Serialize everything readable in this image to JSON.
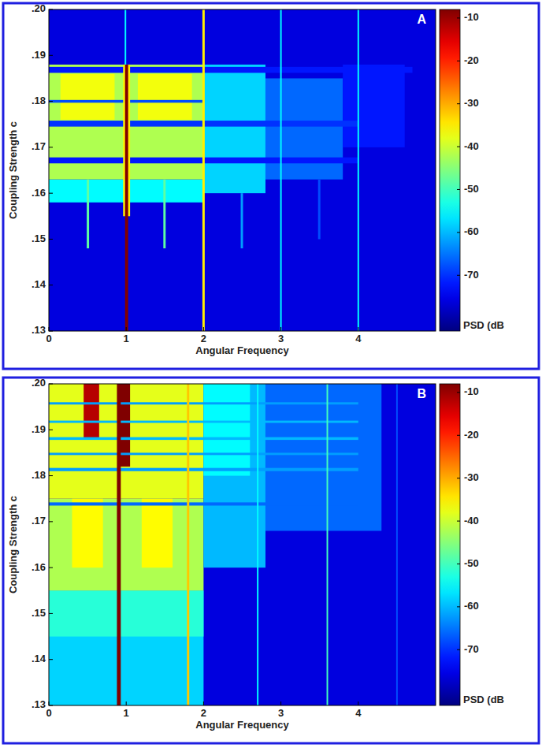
{
  "chart_data": [
    {
      "type": "heatmap",
      "panel": "A",
      "xlabel": "Angular Frequency",
      "ylabel": "Coupling Strength c",
      "xlim": [
        0,
        5
      ],
      "ylim": [
        0.13,
        0.2
      ],
      "xticks": [
        0,
        1,
        2,
        3,
        4
      ],
      "yticks": [
        {
          "value": 0.13,
          "label": ".13"
        },
        {
          "value": 0.14,
          "label": ".14"
        },
        {
          "value": 0.15,
          "label": ".15"
        },
        {
          "value": 0.16,
          "label": ".16"
        },
        {
          "value": 0.17,
          "label": ".17"
        },
        {
          "value": 0.18,
          "label": ".18"
        },
        {
          "value": 0.19,
          "label": ".19"
        },
        {
          "value": 0.2,
          "label": ".20"
        }
      ],
      "colorbar": {
        "label": "PSD (dB",
        "range": [
          -83,
          -8
        ],
        "ticks": [
          -10,
          -20,
          -30,
          -40,
          -50,
          -60,
          -70
        ]
      },
      "cells": [
        {
          "x": [
            0,
            5
          ],
          "y": [
            0.13,
            0.2
          ],
          "value": -76
        },
        {
          "x": [
            0,
            2
          ],
          "y": [
            0.158,
            0.163
          ],
          "value": -55
        },
        {
          "x": [
            0,
            2
          ],
          "y": [
            0.163,
            0.188
          ],
          "value": -42
        },
        {
          "x": [
            0.15,
            0.85
          ],
          "y": [
            0.176,
            0.186
          ],
          "value": -37
        },
        {
          "x": [
            1.15,
            1.85
          ],
          "y": [
            0.176,
            0.186
          ],
          "value": -37
        },
        {
          "x": [
            2,
            2.8
          ],
          "y": [
            0.16,
            0.188
          ],
          "value": -58
        },
        {
          "x": [
            2.8,
            3.8
          ],
          "y": [
            0.163,
            0.185
          ],
          "value": -66
        },
        {
          "x": [
            3.8,
            4.6
          ],
          "y": [
            0.17,
            0.188
          ],
          "value": -72
        },
        {
          "x": [
            0,
            4
          ],
          "y": [
            0.1665,
            0.1678
          ],
          "value": -72
        },
        {
          "x": [
            0,
            4
          ],
          "y": [
            0.1745,
            0.1758
          ],
          "value": -70
        },
        {
          "x": [
            0,
            2
          ],
          "y": [
            0.1797,
            0.1803
          ],
          "value": -68
        },
        {
          "x": [
            0,
            4.7
          ],
          "y": [
            0.1862,
            0.1875
          ],
          "value": -72
        },
        {
          "x": [
            0.49,
            0.52
          ],
          "y": [
            0.148,
            0.163
          ],
          "value": -48
        },
        {
          "x": [
            1.48,
            1.51
          ],
          "y": [
            0.148,
            0.163
          ],
          "value": -48
        },
        {
          "x": [
            2.48,
            2.51
          ],
          "y": [
            0.148,
            0.16
          ],
          "value": -62
        },
        {
          "x": [
            3.48,
            3.51
          ],
          "y": [
            0.15,
            0.163
          ],
          "value": -68
        },
        {
          "x": [
            0.96,
            1.05
          ],
          "y": [
            0.155,
            0.188
          ],
          "value": -35
        },
        {
          "x": [
            0.985,
            1.025
          ],
          "y": [
            0.13,
            0.188
          ],
          "value": -8
        },
        {
          "x": [
            0.98,
            1.0
          ],
          "y": [
            0.188,
            0.2
          ],
          "value": -55
        },
        {
          "x": [
            1.985,
            2.015
          ],
          "y": [
            0.13,
            0.2
          ],
          "value": -35
        },
        {
          "x": [
            2.99,
            3.01
          ],
          "y": [
            0.13,
            0.2
          ],
          "value": -55
        },
        {
          "x": [
            3.99,
            4.01
          ],
          "y": [
            0.13,
            0.2
          ],
          "value": -55
        }
      ]
    },
    {
      "type": "heatmap",
      "panel": "B",
      "xlabel": "Angular Frequency",
      "ylabel": "Coupling Strength c",
      "xlim": [
        0,
        5
      ],
      "ylim": [
        0.13,
        0.2
      ],
      "xticks": [
        0,
        1,
        2,
        3,
        4
      ],
      "yticks": [
        {
          "value": 0.13,
          "label": ".13"
        },
        {
          "value": 0.14,
          "label": ".14"
        },
        {
          "value": 0.15,
          "label": ".15"
        },
        {
          "value": 0.16,
          "label": ".16"
        },
        {
          "value": 0.17,
          "label": ".17"
        },
        {
          "value": 0.18,
          "label": ".18"
        },
        {
          "value": 0.19,
          "label": ".19"
        },
        {
          "value": 0.2,
          "label": ".20"
        }
      ],
      "colorbar": {
        "label": "PSD (dB",
        "range": [
          -83,
          -8
        ],
        "ticks": [
          -10,
          -20,
          -30,
          -40,
          -50,
          -60,
          -70
        ]
      },
      "cells": [
        {
          "x": [
            0,
            5
          ],
          "y": [
            0.13,
            0.2
          ],
          "value": -76
        },
        {
          "x": [
            0,
            2
          ],
          "y": [
            0.13,
            0.155
          ],
          "value": -58
        },
        {
          "x": [
            0,
            2
          ],
          "y": [
            0.145,
            0.155
          ],
          "value": -52
        },
        {
          "x": [
            0,
            2
          ],
          "y": [
            0.155,
            0.175
          ],
          "value": -42
        },
        {
          "x": [
            0.3,
            0.7
          ],
          "y": [
            0.16,
            0.175
          ],
          "value": -36
        },
        {
          "x": [
            1.2,
            1.6
          ],
          "y": [
            0.16,
            0.175
          ],
          "value": -36
        },
        {
          "x": [
            0,
            2
          ],
          "y": [
            0.175,
            0.2
          ],
          "value": -38
        },
        {
          "x": [
            0.45,
            0.65
          ],
          "y": [
            0.188,
            0.2
          ],
          "value": -12
        },
        {
          "x": [
            0.9,
            1.05
          ],
          "y": [
            0.182,
            0.2
          ],
          "value": -8
        },
        {
          "x": [
            2,
            2.8
          ],
          "y": [
            0.16,
            0.2
          ],
          "value": -60
        },
        {
          "x": [
            2,
            2.6
          ],
          "y": [
            0.18,
            0.2
          ],
          "value": -55
        },
        {
          "x": [
            2.8,
            4.3
          ],
          "y": [
            0.168,
            0.2
          ],
          "value": -66
        },
        {
          "x": [
            0,
            4
          ],
          "y": [
            0.1735,
            0.1742
          ],
          "value": -66
        },
        {
          "x": [
            0,
            4
          ],
          "y": [
            0.181,
            0.1817
          ],
          "value": -62
        },
        {
          "x": [
            0,
            4
          ],
          "y": [
            0.1845,
            0.185
          ],
          "value": -62
        },
        {
          "x": [
            0,
            4
          ],
          "y": [
            0.1878,
            0.1884
          ],
          "value": -60
        },
        {
          "x": [
            0,
            4
          ],
          "y": [
            0.1915,
            0.192
          ],
          "value": -60
        },
        {
          "x": [
            0,
            4
          ],
          "y": [
            0.1955,
            0.196
          ],
          "value": -62
        },
        {
          "x": [
            0.88,
            0.93
          ],
          "y": [
            0.13,
            0.2
          ],
          "value": -8
        },
        {
          "x": [
            1.785,
            1.815
          ],
          "y": [
            0.13,
            0.2
          ],
          "value": -32
        },
        {
          "x": [
            2.69,
            2.71
          ],
          "y": [
            0.13,
            0.2
          ],
          "value": -55
        },
        {
          "x": [
            3.59,
            3.61
          ],
          "y": [
            0.13,
            0.2
          ],
          "value": -50
        },
        {
          "x": [
            4.49,
            4.51
          ],
          "y": [
            0.13,
            0.2
          ],
          "value": -68
        }
      ]
    }
  ]
}
